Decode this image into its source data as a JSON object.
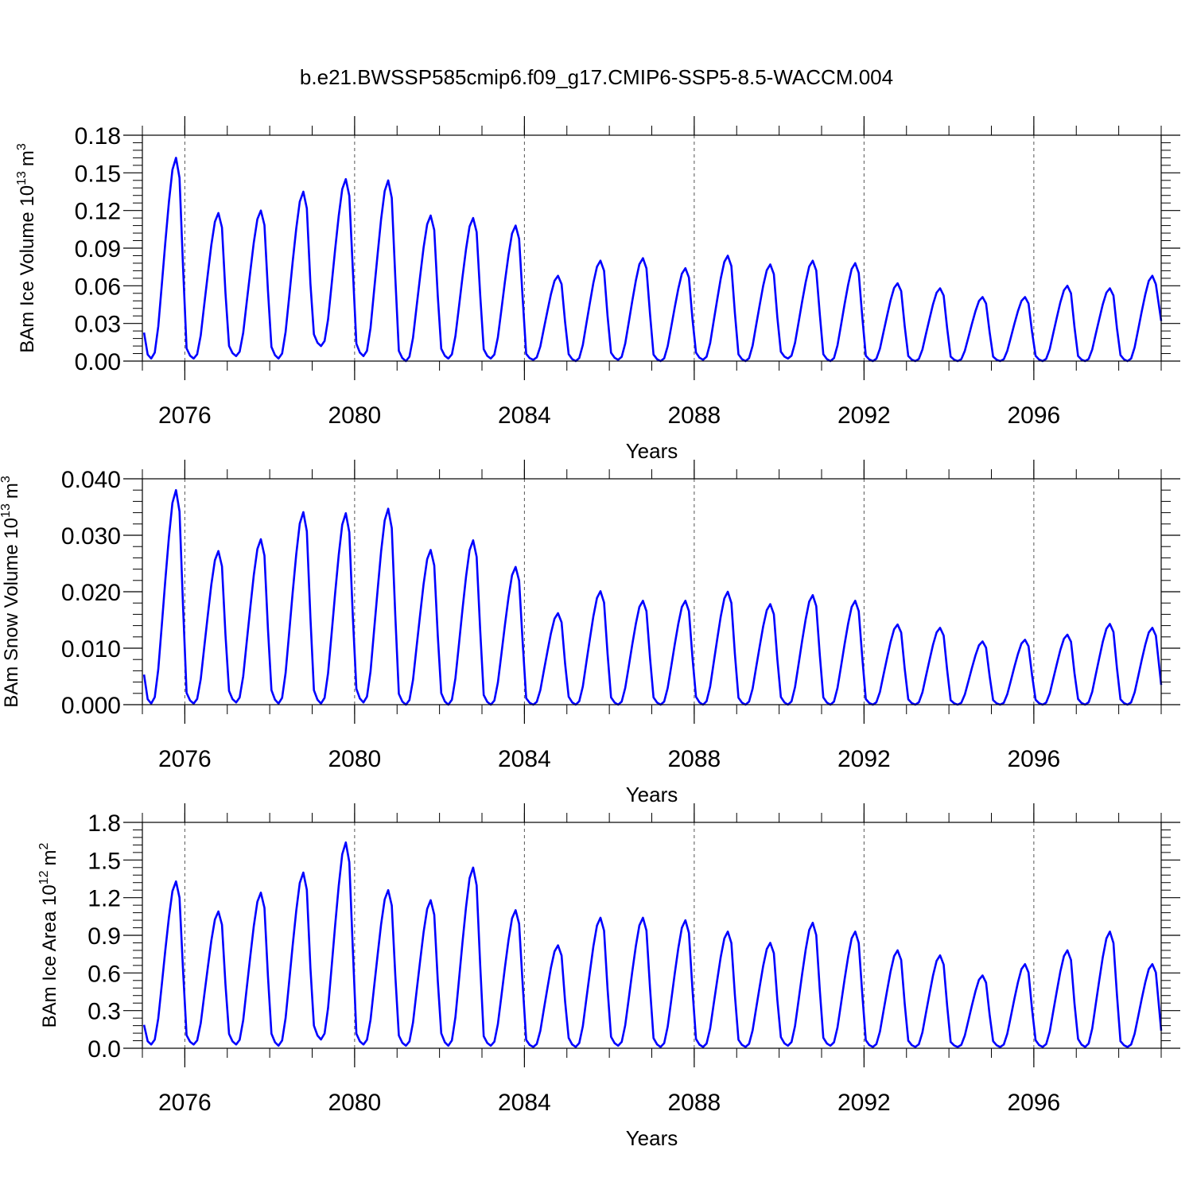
{
  "figure": {
    "title": "b.e21.BWSSP585cmip6.f09_g17.CMIP6-SSP5-8.5-WACCM.004",
    "line_color": "#0000ff"
  },
  "chart_data": [
    {
      "type": "line",
      "ylabel_main": "BAm Ice Volume 10",
      "ylabel_exp": "13",
      "ylabel_unit": "m",
      "ylabel_unit_exp": "3",
      "xlabel": "Years",
      "xlim": [
        2075,
        2099
      ],
      "ylim": [
        0,
        0.18
      ],
      "yticks": [
        0,
        0.03,
        0.06,
        0.09,
        0.12,
        0.15,
        0.18
      ],
      "ytick_labels": [
        "0.00",
        "0.03",
        "0.06",
        "0.09",
        "0.12",
        "0.15",
        "0.18"
      ],
      "xticks": [
        2076,
        2080,
        2084,
        2088,
        2092,
        2096
      ],
      "xtick_labels": [
        "2076",
        "2080",
        "2084",
        "2088",
        "2092",
        "2096"
      ],
      "year_peaks": [
        0.162,
        0.118,
        0.12,
        0.135,
        0.145,
        0.144,
        0.116,
        0.114,
        0.108,
        0.068,
        0.08,
        0.082,
        0.074,
        0.084,
        0.077,
        0.08,
        0.078,
        0.062,
        0.058,
        0.051,
        0.051,
        0.06,
        0.058,
        0.068
      ],
      "year_mins": [
        0.002,
        0.002,
        0.004,
        0.002,
        0.012,
        0.004,
        0.0,
        0.002,
        0.002,
        0.001,
        0.0,
        0.001,
        0.0,
        0.001,
        0.0,
        0.002,
        0.0,
        0.0,
        0.0,
        0.0,
        0.0,
        0.0,
        0.0,
        0.0
      ],
      "end_value": 0.032,
      "grid": "vertical dashed at major x ticks"
    },
    {
      "type": "line",
      "ylabel_main": "BAm Snow Volume 10",
      "ylabel_exp": "13",
      "ylabel_unit": "m",
      "ylabel_unit_exp": "3",
      "xlabel": "Years",
      "xlim": [
        2075,
        2099
      ],
      "ylim": [
        0,
        0.04
      ],
      "yticks": [
        0,
        0.01,
        0.02,
        0.03,
        0.04
      ],
      "ytick_labels": [
        "0.000",
        "0.010",
        "0.020",
        "0.030",
        "0.040"
      ],
      "xticks": [
        2076,
        2080,
        2084,
        2088,
        2092,
        2096
      ],
      "xtick_labels": [
        "2076",
        "2080",
        "2084",
        "2088",
        "2092",
        "2096"
      ],
      "year_peaks": [
        0.038,
        0.0272,
        0.0293,
        0.0341,
        0.0339,
        0.0347,
        0.0274,
        0.0291,
        0.0244,
        0.0162,
        0.0201,
        0.0184,
        0.0184,
        0.02,
        0.0178,
        0.0194,
        0.0184,
        0.0142,
        0.0136,
        0.0112,
        0.0115,
        0.0124,
        0.0143,
        0.0136
      ],
      "year_mins": [
        0.0002,
        0.0002,
        0.0004,
        0.0002,
        0.0002,
        0.0004,
        0.0,
        0.0,
        0.0,
        0.0,
        0.0,
        0.0,
        0.0,
        0.0,
        0.0,
        0.0,
        0.0,
        0.0,
        0.0,
        0.0,
        0.0,
        0.0,
        0.0,
        0.0
      ],
      "end_value": 0.0035,
      "grid": "vertical dashed at major x ticks"
    },
    {
      "type": "line",
      "ylabel_main": "BAm Ice Area 10",
      "ylabel_exp": "12",
      "ylabel_unit": "m",
      "ylabel_unit_exp": "2",
      "xlabel": "Years",
      "xlim": [
        2075,
        2099
      ],
      "ylim": [
        0,
        1.8
      ],
      "yticks": [
        0,
        0.3,
        0.6,
        0.9,
        1.2,
        1.5,
        1.8
      ],
      "ytick_labels": [
        "0.0",
        "0.3",
        "0.6",
        "0.9",
        "1.2",
        "1.5",
        "1.8"
      ],
      "xticks": [
        2076,
        2080,
        2084,
        2088,
        2092,
        2096
      ],
      "xtick_labels": [
        "2076",
        "2080",
        "2084",
        "2088",
        "2092",
        "2096"
      ],
      "year_peaks": [
        1.33,
        1.09,
        1.24,
        1.4,
        1.64,
        1.26,
        1.18,
        1.44,
        1.1,
        0.82,
        1.04,
        1.04,
        1.02,
        0.93,
        0.84,
        1.0,
        0.93,
        0.78,
        0.74,
        0.58,
        0.67,
        0.78,
        0.93,
        0.67
      ],
      "year_mins": [
        0.03,
        0.03,
        0.03,
        0.02,
        0.07,
        0.03,
        0.02,
        0.02,
        0.02,
        0.01,
        0.01,
        0.02,
        0.01,
        0.01,
        0.01,
        0.02,
        0.02,
        0.01,
        0.01,
        0.01,
        0.01,
        0.01,
        0.01,
        0.01
      ],
      "end_value": 0.14,
      "grid": "vertical dashed at major x ticks"
    }
  ]
}
